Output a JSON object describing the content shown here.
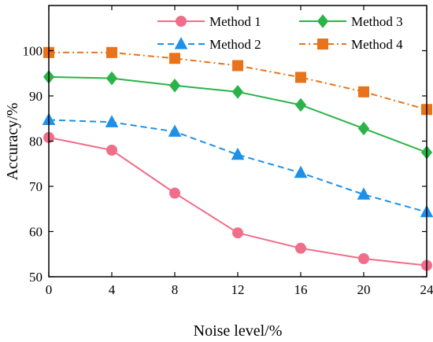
{
  "chart_data": {
    "type": "line",
    "xlabel": "Noise level/%",
    "ylabel": "Accuracy/%",
    "x": [
      0,
      4,
      8,
      12,
      16,
      20,
      24
    ],
    "xlim": [
      0,
      24
    ],
    "ylim": [
      50,
      110
    ],
    "xticks": [
      "0",
      "4",
      "8",
      "12",
      "16",
      "20",
      "24"
    ],
    "yticks": [
      "50",
      "60",
      "70",
      "80",
      "90",
      "100"
    ],
    "ytick_values": [
      50,
      60,
      70,
      80,
      90,
      100
    ],
    "grid": false,
    "legend_position": "top",
    "series": [
      {
        "name": "Method 1",
        "values": [
          80.8,
          78.0,
          68.5,
          59.7,
          56.3,
          54.0,
          52.5
        ],
        "color": "#f06e8a",
        "dash": "solid",
        "marker": "circle"
      },
      {
        "name": "Method 2",
        "values": [
          84.7,
          84.2,
          82.1,
          77.0,
          73.0,
          68.2,
          64.3
        ],
        "color": "#1e90e8",
        "dash": "dashed",
        "marker": "triangle"
      },
      {
        "name": "Method 3",
        "values": [
          94.2,
          93.9,
          92.3,
          90.9,
          88.0,
          82.8,
          77.5
        ],
        "color": "#2bb34a",
        "dash": "solid",
        "marker": "diamond"
      },
      {
        "name": "Method 4",
        "values": [
          99.6,
          99.6,
          98.3,
          96.7,
          94.1,
          90.9,
          87.0
        ],
        "color": "#e8731a",
        "dash": "dashdot",
        "marker": "square"
      }
    ]
  }
}
